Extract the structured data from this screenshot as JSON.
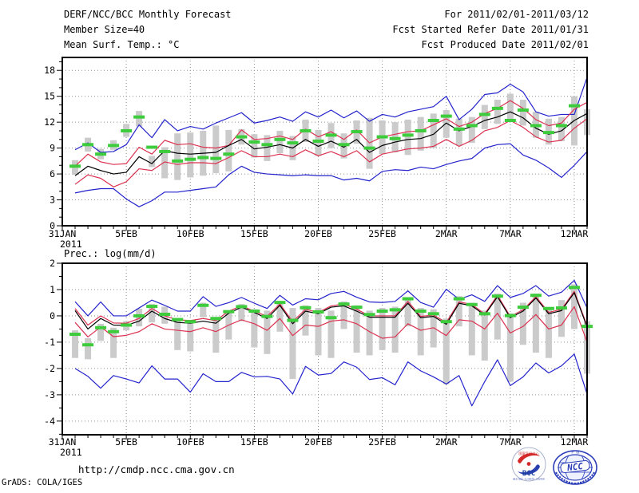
{
  "header": {
    "left": [
      "DERF/NCC/BCC Monthly Forecast",
      "Member Size=40",
      "Mean Surf. Temp.: °C"
    ],
    "right": [
      "For 2011/02/01-2011/03/12",
      "Fcst Started Refer Date 2011/01/31",
      "Fcst Produced Date 2011/02/01"
    ]
  },
  "footer": {
    "url": "http://cmdp.ncc.cma.gov.cn",
    "grads": "GrADS: COLA/IGES",
    "logos": {
      "bcc": "BCC",
      "bcc_top": "国家气候中心",
      "bcc_sub": "BEIJING CLIMATE CENTER",
      "ncc": "NCC"
    }
  },
  "colors": {
    "extreme_line": "#2323cd",
    "spread_line": "#dc3250",
    "mean_line": "#000000",
    "obs_mark": "#3ccc3c",
    "range_bar": "#cbcbcb",
    "grid": "#8f8f8f",
    "frame": "#000000"
  },
  "chart_data": [
    {
      "type": "line",
      "title": "Mean Surf. Temp.: °C",
      "ylabel": "Mean Surf. Temp. (°C)",
      "ylim": [
        0,
        19.5
      ],
      "y_ticks": [
        0,
        3,
        6,
        9,
        12,
        15,
        18
      ],
      "y_minor_step": 1,
      "xlim": [
        0,
        41
      ],
      "x_tick_days": [
        0,
        5,
        10,
        15,
        20,
        25,
        30,
        35,
        40
      ],
      "x_tick_labels": [
        "31JAN",
        "5FEB",
        "10FEB",
        "15FEB",
        "20FEB",
        "25FEB",
        "2MAR",
        "7MAR",
        "12MAR"
      ],
      "x_year_label": "2011",
      "start_day": 1,
      "grid": true,
      "legend_position": "none",
      "series": [
        {
          "name": "ensemble-max",
          "color": "#2323cd",
          "values": [
            8.8,
            9.6,
            8.5,
            8.6,
            9.4,
            11.7,
            10.2,
            12.3,
            11.0,
            11.5,
            11.2,
            11.9,
            12.5,
            13.1,
            11.9,
            12.2,
            12.6,
            12.1,
            13.2,
            12.6,
            13.4,
            12.5,
            13.3,
            12.1,
            12.9,
            12.6,
            13.2,
            13.5,
            13.8,
            15.0,
            12.3,
            13.5,
            15.2,
            15.4,
            16.4,
            15.5,
            13.2,
            12.7,
            12.9,
            12.9,
            17.2
          ]
        },
        {
          "name": "spread-upper",
          "color": "#dc3250",
          "values": [
            6.9,
            8.3,
            7.4,
            7.1,
            7.2,
            9.1,
            8.3,
            9.9,
            9.4,
            9.5,
            9.1,
            9.0,
            9.3,
            11.1,
            10.0,
            10.1,
            10.4,
            10.0,
            11.2,
            10.3,
            10.9,
            10.0,
            11.1,
            9.6,
            10.3,
            10.6,
            10.9,
            11.0,
            11.7,
            12.4,
            11.5,
            12.0,
            13.0,
            13.6,
            14.5,
            13.6,
            12.3,
            11.6,
            11.9,
            13.5,
            14.3
          ]
        },
        {
          "name": "ensemble-mean",
          "color": "#000000",
          "values": [
            5.8,
            6.9,
            6.4,
            6.0,
            6.2,
            8.0,
            7.2,
            8.7,
            8.4,
            8.3,
            8.4,
            8.5,
            9.3,
            10.0,
            8.9,
            9.1,
            9.4,
            9.0,
            10.0,
            9.2,
            9.8,
            9.1,
            10.0,
            8.5,
            9.3,
            9.7,
            10.0,
            10.1,
            10.6,
            11.9,
            11.0,
            11.5,
            12.2,
            12.6,
            13.2,
            12.5,
            11.3,
            10.6,
            11.0,
            12.2,
            13.0
          ]
        },
        {
          "name": "spread-lower",
          "color": "#dc3250",
          "values": [
            4.8,
            5.9,
            5.5,
            4.5,
            5.1,
            6.6,
            6.4,
            7.4,
            7.1,
            7.3,
            7.3,
            7.2,
            7.9,
            8.7,
            8.0,
            8.0,
            8.3,
            8.0,
            8.8,
            8.1,
            8.6,
            8.0,
            8.7,
            7.4,
            8.3,
            8.6,
            8.9,
            9.0,
            9.2,
            10.0,
            9.2,
            9.9,
            11.0,
            11.4,
            12.2,
            11.4,
            10.3,
            9.7,
            9.9,
            11.3,
            12.4
          ]
        },
        {
          "name": "ensemble-min",
          "color": "#2323cd",
          "values": [
            3.8,
            4.1,
            4.3,
            4.3,
            3.1,
            2.2,
            2.9,
            3.9,
            3.9,
            4.1,
            4.3,
            4.5,
            5.9,
            6.9,
            6.2,
            6.0,
            5.9,
            5.8,
            5.9,
            5.8,
            5.8,
            5.3,
            5.5,
            5.2,
            6.3,
            6.5,
            6.4,
            6.8,
            6.6,
            7.1,
            7.5,
            7.8,
            9.0,
            9.4,
            9.5,
            8.2,
            7.6,
            6.7,
            5.6,
            7.0,
            8.6
          ]
        }
      ],
      "green_marks": {
        "name": "daily-observation-dash",
        "color": "#3ccc3c",
        "values": [
          6.9,
          9.4,
          8.3,
          9.3,
          11.0,
          12.6,
          9.1,
          8.6,
          7.5,
          7.7,
          7.9,
          7.8,
          8.3,
          10.3,
          9.7,
          9.4,
          10.0,
          9.6,
          11.0,
          9.8,
          10.5,
          9.4,
          10.9,
          9.0,
          10.3,
          10.1,
          10.5,
          11.0,
          12.2,
          12.7,
          11.2,
          11.6,
          12.9,
          13.6,
          12.2,
          13.4,
          11.6,
          10.8,
          11.6,
          13.9,
          null
        ]
      },
      "gray_bars": {
        "name": "daily-range-bar",
        "color": "#cbcbcb",
        "ranges": [
          [
            5.9,
            7.6
          ],
          [
            8.6,
            10.2
          ],
          [
            7.7,
            8.9
          ],
          [
            8.8,
            9.9
          ],
          [
            10.3,
            11.8
          ],
          [
            11.5,
            13.3
          ],
          [
            6.8,
            8.1
          ],
          [
            5.5,
            9.1
          ],
          [
            5.3,
            10.7
          ],
          [
            5.6,
            10.8
          ],
          [
            5.8,
            11.0
          ],
          [
            6.1,
            11.6
          ],
          [
            6.3,
            11.1
          ],
          [
            9.4,
            11.2
          ],
          [
            7.9,
            10.6
          ],
          [
            7.5,
            10.5
          ],
          [
            8.4,
            11.0
          ],
          [
            7.6,
            10.4
          ],
          [
            9.7,
            12.3
          ],
          [
            8.1,
            11.1
          ],
          [
            9.0,
            11.9
          ],
          [
            7.8,
            10.7
          ],
          [
            9.5,
            12.2
          ],
          [
            6.6,
            12.5
          ],
          [
            8.3,
            12.2
          ],
          [
            8.5,
            12.0
          ],
          [
            8.2,
            12.3
          ],
          [
            8.7,
            12.6
          ],
          [
            9.0,
            13.0
          ],
          [
            10.2,
            13.4
          ],
          [
            9.3,
            12.4
          ],
          [
            9.6,
            12.6
          ],
          [
            11.2,
            14.0
          ],
          [
            11.8,
            14.6
          ],
          [
            12.3,
            15.3
          ],
          [
            11.6,
            14.6
          ],
          [
            10.2,
            13.2
          ],
          [
            9.4,
            12.4
          ],
          [
            9.8,
            12.6
          ],
          [
            9.3,
            15.0
          ],
          [
            10.5,
            13.5
          ]
        ]
      }
    },
    {
      "type": "line",
      "title": "Prec.: log(mm/d)",
      "ylabel": "Prec. log(mm/d)",
      "ylim": [
        -4.52,
        2
      ],
      "y_ticks": [
        2,
        1,
        0,
        -1,
        -2,
        -3,
        -4
      ],
      "y_minor_step": 0.5,
      "xlim": [
        0,
        41
      ],
      "x_tick_days": [
        0,
        5,
        10,
        15,
        20,
        25,
        30,
        35,
        40
      ],
      "x_tick_labels": [
        "31JAN",
        "5FEB",
        "10FEB",
        "15FEB",
        "20FEB",
        "25FEB",
        "2MAR",
        "7MAR",
        "12MAR"
      ],
      "x_year_label": "2011",
      "start_day": 1,
      "grid": true,
      "legend_position": "none",
      "series": [
        {
          "name": "ensemble-max",
          "color": "#2323cd",
          "values": [
            0.54,
            0.0,
            0.53,
            0.0,
            0.0,
            0.3,
            0.6,
            0.4,
            0.18,
            0.18,
            0.73,
            0.36,
            0.5,
            0.7,
            0.48,
            0.28,
            0.78,
            0.41,
            0.65,
            0.61,
            0.85,
            0.93,
            0.71,
            0.53,
            0.51,
            0.55,
            0.95,
            0.51,
            0.33,
            1.01,
            0.63,
            0.8,
            0.55,
            1.15,
            0.7,
            0.85,
            1.15,
            0.75,
            0.9,
            1.35,
            0.3
          ]
        },
        {
          "name": "spread-upper",
          "color": "#dc3250",
          "values": [
            0.28,
            -0.35,
            0.0,
            -0.27,
            -0.28,
            -0.1,
            0.28,
            0.0,
            -0.15,
            -0.18,
            -0.1,
            -0.18,
            0.18,
            0.38,
            0.18,
            -0.02,
            0.45,
            -0.22,
            0.25,
            0.13,
            0.38,
            0.45,
            0.25,
            0.0,
            0.0,
            0.0,
            0.55,
            -0.02,
            0.03,
            -0.25,
            0.53,
            0.43,
            0.08,
            0.78,
            -0.02,
            0.23,
            0.73,
            0.13,
            0.25,
            0.93,
            -0.37
          ]
        },
        {
          "name": "ensemble-mean",
          "color": "#000000",
          "values": [
            0.2,
            -0.5,
            -0.1,
            -0.35,
            -0.36,
            -0.2,
            0.18,
            -0.1,
            -0.25,
            -0.28,
            -0.2,
            -0.28,
            0.1,
            0.33,
            0.13,
            -0.1,
            0.4,
            -0.3,
            0.18,
            0.08,
            0.33,
            0.38,
            0.18,
            -0.05,
            -0.05,
            -0.05,
            0.48,
            -0.07,
            -0.02,
            -0.32,
            0.48,
            0.38,
            0.03,
            0.73,
            -0.07,
            0.18,
            0.68,
            0.08,
            0.2,
            0.88,
            -0.42
          ]
        },
        {
          "name": "spread-lower",
          "color": "#dc3250",
          "values": [
            -0.25,
            -0.8,
            -0.42,
            -0.79,
            -0.74,
            -0.6,
            -0.3,
            -0.5,
            -0.55,
            -0.6,
            -0.45,
            -0.6,
            -0.35,
            -0.15,
            -0.3,
            -0.55,
            -0.1,
            -0.75,
            -0.35,
            -0.4,
            -0.2,
            -0.15,
            -0.3,
            -0.6,
            -0.85,
            -0.8,
            -0.3,
            -0.55,
            -0.45,
            -0.75,
            -0.15,
            -0.2,
            -0.5,
            0.1,
            -0.65,
            -0.4,
            0.05,
            -0.5,
            -0.35,
            0.35,
            -1.0
          ]
        },
        {
          "name": "ensemble-min",
          "color": "#2323cd",
          "values": [
            -2.0,
            -2.3,
            -2.75,
            -2.27,
            -2.4,
            -2.55,
            -1.9,
            -2.4,
            -2.4,
            -2.9,
            -2.2,
            -2.5,
            -2.5,
            -2.15,
            -2.32,
            -2.3,
            -2.4,
            -2.97,
            -1.92,
            -2.25,
            -2.19,
            -1.75,
            -1.95,
            -2.42,
            -2.35,
            -2.62,
            -1.75,
            -2.09,
            -2.32,
            -2.59,
            -2.27,
            -3.42,
            -2.5,
            -1.67,
            -2.65,
            -2.32,
            -1.79,
            -2.17,
            -1.9,
            -1.45,
            -2.97
          ]
        }
      ],
      "green_marks": {
        "name": "daily-observation-dash",
        "color": "#3ccc3c",
        "values": [
          -0.7,
          -1.1,
          -0.45,
          -0.6,
          -0.35,
          0.0,
          0.36,
          0.06,
          -0.14,
          -0.22,
          0.4,
          -0.1,
          0.16,
          0.35,
          0.18,
          -0.02,
          0.51,
          -0.17,
          0.31,
          0.15,
          -0.07,
          0.45,
          0.33,
          0.05,
          0.18,
          0.23,
          0.65,
          0.18,
          0.08,
          -0.22,
          0.65,
          0.43,
          0.08,
          0.75,
          0.01,
          0.33,
          0.78,
          0.28,
          0.3,
          1.08,
          -0.4
        ]
      },
      "gray_bars": {
        "name": "daily-range-bar",
        "color": "#cbcbcb",
        "ranges": [
          [
            -1.6,
            -0.55
          ],
          [
            -1.65,
            -0.85
          ],
          [
            -0.95,
            -0.3
          ],
          [
            -1.6,
            -0.45
          ],
          [
            -0.55,
            -0.2
          ],
          [
            -0.4,
            0.27
          ],
          [
            -0.25,
            0.45
          ],
          [
            -0.3,
            0.35
          ],
          [
            -1.3,
            -0.1
          ],
          [
            -1.35,
            -0.15
          ],
          [
            -0.05,
            0.5
          ],
          [
            -1.4,
            -0.05
          ],
          [
            -0.9,
            0.2
          ],
          [
            -0.2,
            0.45
          ],
          [
            -1.2,
            0.25
          ],
          [
            -1.45,
            0.2
          ],
          [
            -0.6,
            0.5
          ],
          [
            -2.4,
            0.3
          ],
          [
            -0.75,
            0.4
          ],
          [
            -1.5,
            0.3
          ],
          [
            -1.6,
            0.2
          ],
          [
            -0.5,
            0.55
          ],
          [
            -1.4,
            0.4
          ],
          [
            -1.5,
            0.2
          ],
          [
            -1.3,
            0.3
          ],
          [
            -1.4,
            0.35
          ],
          [
            -0.4,
            0.7
          ],
          [
            -1.5,
            0.3
          ],
          [
            -1.2,
            0.25
          ],
          [
            -2.6,
            -0.1
          ],
          [
            -0.4,
            0.75
          ],
          [
            -1.5,
            0.5
          ],
          [
            -1.7,
            0.2
          ],
          [
            -0.9,
            0.85
          ],
          [
            -2.5,
            0.1
          ],
          [
            -1.1,
            0.5
          ],
          [
            -1.4,
            0.85
          ],
          [
            -1.6,
            0.3
          ],
          [
            -0.8,
            0.6
          ],
          [
            -0.5,
            1.2
          ],
          [
            -2.2,
            -0.2
          ]
        ]
      }
    }
  ]
}
